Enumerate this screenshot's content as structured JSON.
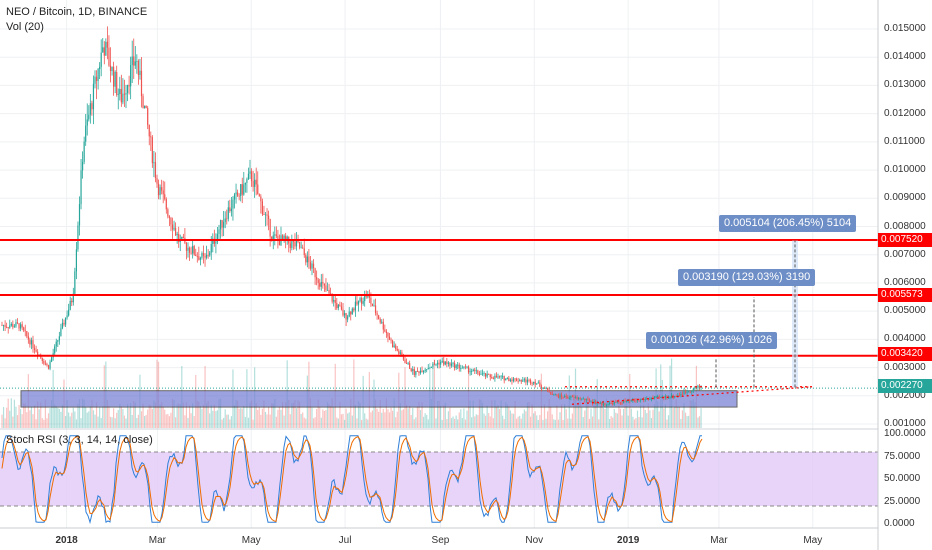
{
  "legend": {
    "title": "NEO / Bitcoin, 1D, BINANCE",
    "volume": "Vol (20)"
  },
  "rsi_legend": "Stoch RSI (3, 3, 14, 14, close)",
  "price_axis_labels": [
    "0.015000",
    "0.014000",
    "0.013000",
    "0.012000",
    "0.011000",
    "0.010000",
    "0.009000",
    "0.008000",
    "0.007000",
    "0.006000",
    "0.005000",
    "0.004000",
    "0.003000",
    "0.002000",
    "0.001000"
  ],
  "rsi_axis_labels": [
    "100.0000",
    "75.0000",
    "50.0000",
    "25.0000",
    "0.0000"
  ],
  "x_axis_labels": [
    "2018",
    "Mar",
    "May",
    "Jul",
    "Sep",
    "Nov",
    "2019",
    "Mar",
    "May"
  ],
  "price_boxes": {
    "r1": "0.007520",
    "r2": "0.005573",
    "r3": "0.003420",
    "current": "0.002270"
  },
  "measurements": {
    "m1": "0.005104 (206.45%) 5104",
    "m2": "0.003190 (129.03%) 3190",
    "m3": "0.001026 (42.96%) 1026"
  },
  "colors": {
    "up": "#26a69a",
    "down": "#ef5350",
    "resistance": "#ff0000",
    "zone": "#7b83d6",
    "rsi_band": "#e2c9f7",
    "measure": "#6d8ec6",
    "current": "#26a69a"
  },
  "chart_data": {
    "type": "line",
    "title": "NEO / Bitcoin, 1D, BINANCE",
    "x": [
      "2017-12-01",
      "2017-12-20",
      "2018-01-05",
      "2018-01-12",
      "2018-01-25",
      "2018-02-05",
      "2018-02-15",
      "2018-03-01",
      "2018-03-15",
      "2018-04-01",
      "2018-04-15",
      "2018-05-01",
      "2018-05-15",
      "2018-06-01",
      "2018-06-15",
      "2018-07-01",
      "2018-07-15",
      "2018-08-01",
      "2018-08-15",
      "2018-09-01",
      "2018-09-15",
      "2018-10-01",
      "2018-10-15",
      "2018-11-01",
      "2018-11-15",
      "2018-12-01",
      "2018-12-15",
      "2019-01-01",
      "2019-01-15",
      "2019-02-01",
      "2019-02-15"
    ],
    "series": [
      {
        "values": [
          0.0045,
          0.003,
          0.0055,
          0.011,
          0.0145,
          0.0125,
          0.014,
          0.0095,
          0.0075,
          0.0068,
          0.0085,
          0.0098,
          0.0076,
          0.0073,
          0.006,
          0.0048,
          0.0056,
          0.0038,
          0.0028,
          0.0032,
          0.003,
          0.0027,
          0.0026,
          0.0025,
          0.002,
          0.0019,
          0.0017,
          0.0018,
          0.0019,
          0.002,
          0.0023
        ]
      }
    ],
    "ylim": [
      0.0,
      0.0155
    ],
    "resistance_levels": [
      0.00752,
      0.005573,
      0.00342
    ],
    "current_price": 0.00227
  }
}
